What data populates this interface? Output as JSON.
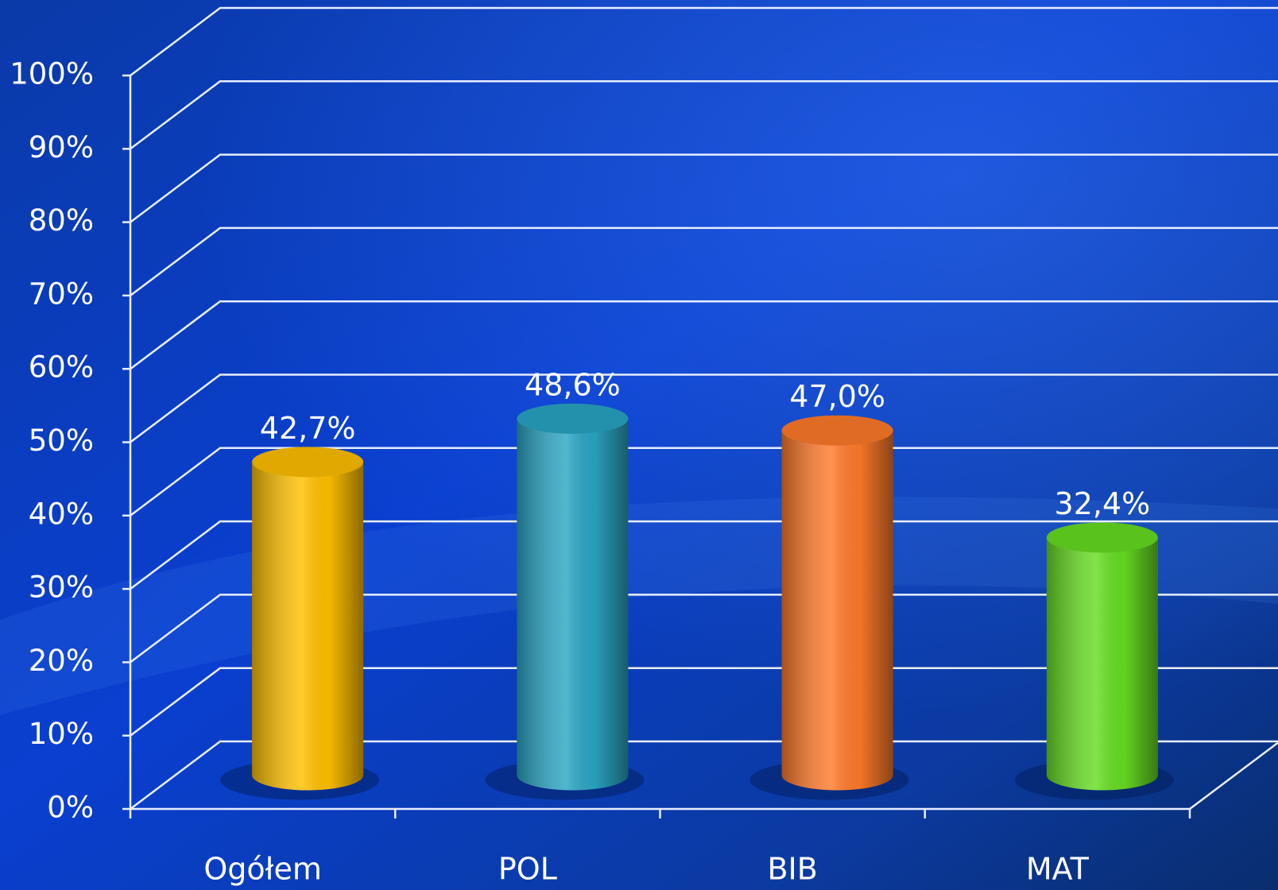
{
  "chart_data": {
    "type": "bar",
    "categories": [
      "Ogółem",
      "POL",
      "BIB",
      "MAT"
    ],
    "values": [
      42.7,
      48.6,
      47.0,
      32.4
    ],
    "value_labels": [
      "42,7%",
      "48,6%",
      "47,0%",
      "32,4%"
    ],
    "colors": [
      "#ffc000",
      "#2aa6c4",
      "#ff7a2a",
      "#66dd22"
    ],
    "ylim": [
      0,
      100
    ],
    "yticks": [
      {
        "value": 0,
        "label": "0%"
      },
      {
        "value": 10,
        "label": "10%"
      },
      {
        "value": 20,
        "label": "20%"
      },
      {
        "value": 30,
        "label": "30%"
      },
      {
        "value": 40,
        "label": "40%"
      },
      {
        "value": 50,
        "label": "50%"
      },
      {
        "value": 60,
        "label": "60%"
      },
      {
        "value": 70,
        "label": "70%"
      },
      {
        "value": 80,
        "label": "80%"
      },
      {
        "value": 90,
        "label": "90%"
      },
      {
        "value": 100,
        "label": "100%"
      }
    ],
    "grid": true
  }
}
